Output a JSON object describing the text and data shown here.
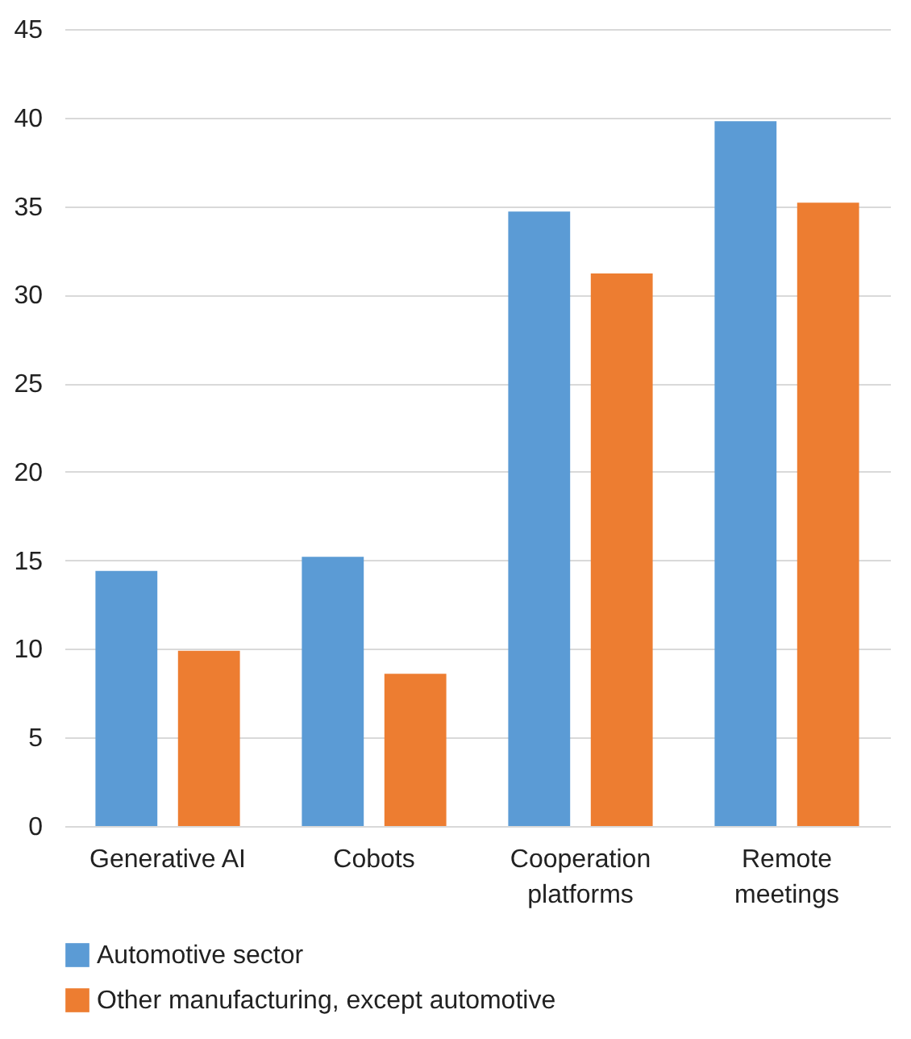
{
  "chart_data": {
    "type": "bar",
    "categories": [
      "Generative AI",
      "Cobots",
      "Cooperation platforms",
      "Remote meetings"
    ],
    "series": [
      {
        "name": "Automotive sector",
        "color": "#5b9bd5",
        "values": [
          14.4,
          15.2,
          34.7,
          39.8
        ]
      },
      {
        "name": "Other manufacturing, except automotive",
        "color": "#ed7d31",
        "values": [
          9.9,
          8.6,
          31.2,
          35.2
        ]
      }
    ],
    "ylim": [
      0,
      45
    ],
    "yticks": [
      0,
      5,
      10,
      15,
      20,
      25,
      30,
      35,
      40,
      45
    ],
    "grid": "y",
    "legend": "bottom"
  }
}
